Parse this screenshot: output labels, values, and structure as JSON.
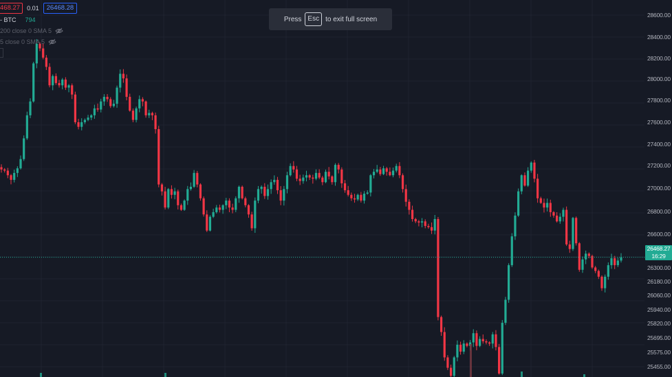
{
  "top_bar": {
    "sell_price": "468.27",
    "spread": "0.01",
    "buy_price": "26468.28"
  },
  "legend": {
    "volume_label": "- BTC",
    "volume_value": "794",
    "sma_rows": [
      "200 close 0 SMA 5",
      "5 close 0 SMA 5"
    ]
  },
  "toast": {
    "prefix": "Press",
    "key": "Esc",
    "suffix": "to exit full screen"
  },
  "price_axis": {
    "ticks": [
      "28600.00",
      "28400.00",
      "28200.00",
      "28000.00",
      "27800.00",
      "27600.00",
      "27400.00",
      "27200.00",
      "27000.00",
      "26800.00",
      "26600.00",
      "26300.00",
      "26180.00",
      "26060.00",
      "25940.00",
      "25820.00",
      "25695.00",
      "25575.00",
      "25455.00"
    ],
    "last_price": "26468.27",
    "countdown": "16:29"
  },
  "colors": {
    "background": "#161a25",
    "up": "#22ab94",
    "down": "#f23645",
    "grid": "#1f2330"
  },
  "chart_data": {
    "type": "candlestick",
    "symbol": "BTC",
    "last_price": 26468.27,
    "ylim": [
      25430,
      28700
    ],
    "close": [
      27230,
      27220,
      27180,
      27140,
      27200,
      27240,
      27320,
      27500,
      27700,
      27820,
      28150,
      28320,
      28280,
      28200,
      28120,
      27960,
      28040,
      27980,
      27960,
      28010,
      27940,
      27960,
      27880,
      27640,
      27600,
      27640,
      27660,
      27680,
      27700,
      27760,
      27750,
      27820,
      27860,
      27840,
      27780,
      27800,
      27940,
      28060,
      28020,
      27860,
      27740,
      27660,
      27760,
      27840,
      27820,
      27700,
      27720,
      27700,
      27580,
      27100,
      27040,
      26900,
      27060,
      27010,
      27040,
      26920,
      26880,
      26960,
      27060,
      27080,
      27200,
      27100,
      26980,
      26840,
      26700,
      26820,
      26860,
      26900,
      26880,
      26920,
      26960,
      26900,
      26880,
      26980,
      27080,
      26980,
      26920,
      26840,
      26720,
      26960,
      27060,
      27080,
      27000,
      27060,
      27120,
      27140,
      27050,
      26960,
      27060,
      27180,
      27260,
      27230,
      27150,
      27130,
      27160,
      27180,
      27160,
      27150,
      27200,
      27160,
      27120,
      27210,
      27170,
      27120,
      27270,
      27230,
      27110,
      27050,
      27010,
      26980,
      26970,
      27010,
      26960,
      27020,
      27030,
      27180,
      27210,
      27230,
      27190,
      27240,
      27210,
      27180,
      27220,
      27260,
      27180,
      27060,
      26950,
      26880,
      26800,
      26780,
      26770,
      26780,
      26740,
      26730,
      26700,
      26800,
      25950,
      25820,
      25600,
      25510,
      25440,
      25600,
      25710,
      25650,
      25720,
      25700,
      25730,
      25810,
      25700,
      25760,
      25740,
      25730,
      25720,
      25800,
      25690,
      25460,
      25900,
      26100,
      26400,
      26650,
      26830,
      27040,
      27180,
      27090,
      27220,
      27290,
      27150,
      26980,
      26940,
      26900,
      26940,
      26860,
      26830,
      26780,
      26820,
      26880,
      26580,
      26540,
      26810,
      26590,
      26360,
      26450,
      26500,
      26480,
      26380,
      26350,
      26300,
      26200,
      26300,
      26400,
      26460,
      26400,
      26440,
      26468.27
    ]
  }
}
